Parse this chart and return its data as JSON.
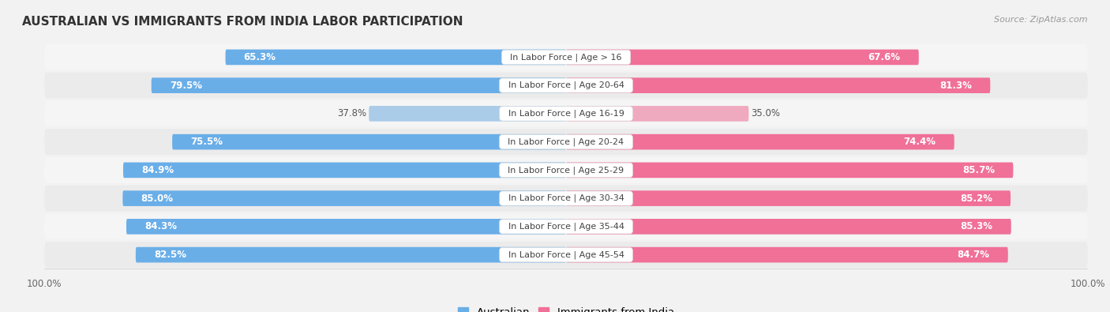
{
  "title": "AUSTRALIAN VS IMMIGRANTS FROM INDIA LABOR PARTICIPATION",
  "source": "Source: ZipAtlas.com",
  "categories": [
    "In Labor Force | Age > 16",
    "In Labor Force | Age 20-64",
    "In Labor Force | Age 16-19",
    "In Labor Force | Age 20-24",
    "In Labor Force | Age 25-29",
    "In Labor Force | Age 30-34",
    "In Labor Force | Age 35-44",
    "In Labor Force | Age 45-54"
  ],
  "australian_values": [
    65.3,
    79.5,
    37.8,
    75.5,
    84.9,
    85.0,
    84.3,
    82.5
  ],
  "india_values": [
    67.6,
    81.3,
    35.0,
    74.4,
    85.7,
    85.2,
    85.3,
    84.7
  ],
  "australian_color_dark": "#6AAEE8",
  "australian_color_light": "#AACCE8",
  "india_color_dark": "#F07098",
  "india_color_light": "#F0AABF",
  "row_bg_even": "#F5F5F5",
  "row_bg_odd": "#EBEBEB",
  "max_value": 100.0,
  "label_fontsize": 8.5,
  "title_fontsize": 11,
  "axis_label_fontsize": 8.5,
  "legend_fontsize": 9.5,
  "category_fontsize": 8.0,
  "low_value_threshold": 60
}
